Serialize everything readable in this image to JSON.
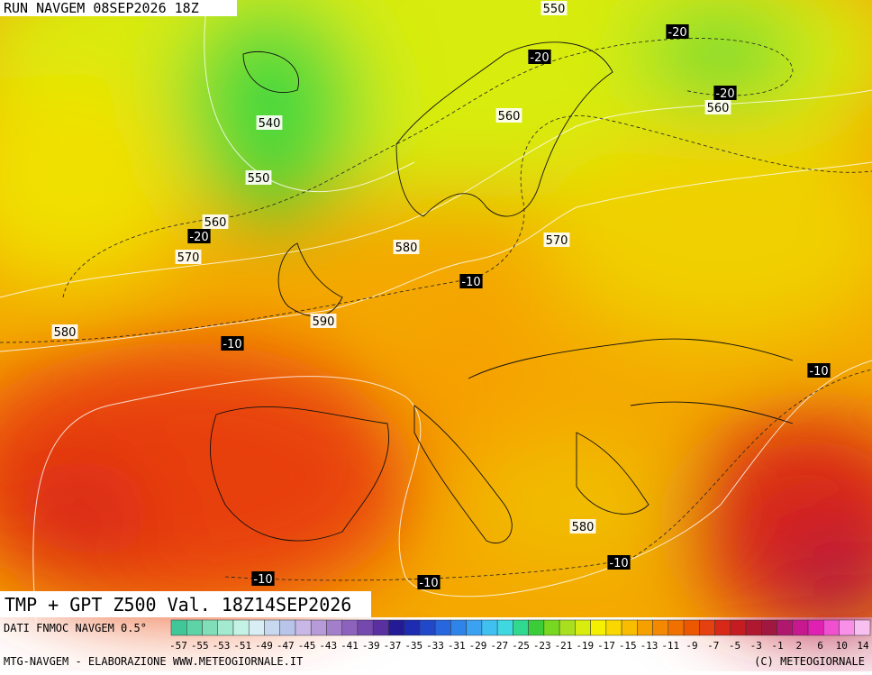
{
  "header": {
    "run": "RUN NAVGEM 08SEP2026 18Z"
  },
  "map": {
    "height_labels": [
      "550",
      "540",
      "550",
      "560",
      "560",
      "570",
      "580",
      "570",
      "590",
      "580",
      "560",
      "580"
    ],
    "temperature_labels": [
      "-20",
      "-20",
      "-20",
      "-20",
      "-10",
      "-10",
      "-10",
      "-10",
      "-10",
      "-10"
    ]
  },
  "title": "TMP + GPT Z500 Val. 18Z14SEP2026",
  "colorbar": {
    "source": "DATI FNMOC NAVGEM 0.5°",
    "labels": [
      "-57",
      "-55",
      "-53",
      "-51",
      "-49",
      "-47",
      "-45",
      "-43",
      "-41",
      "-39",
      "-37",
      "-35",
      "-33",
      "-31",
      "-29",
      "-27",
      "-25",
      "-23",
      "-21",
      "-19",
      "-17",
      "-15",
      "-13",
      "-11",
      "-9",
      "-7",
      "-5",
      "-3",
      "-1",
      "2",
      "6",
      "10",
      "14"
    ],
    "colors": [
      "#3fc79a",
      "#5fd3a8",
      "#80dfb8",
      "#a3ead0",
      "#c4f2e4",
      "#d8eef4",
      "#c8d8ee",
      "#b8c4ea",
      "#c9b7e6",
      "#b79ad8",
      "#a37fcb",
      "#8c62bd",
      "#7448ad",
      "#5a2fa0",
      "#241a96",
      "#1d2cb0",
      "#2048c8",
      "#2766dc",
      "#2f84ea",
      "#3aa2f0",
      "#40c0f0",
      "#3fd8e0",
      "#30d890",
      "#3ccc3a",
      "#78d820",
      "#a8e020",
      "#d8ec10",
      "#f4f000",
      "#f8d800",
      "#f8bc00",
      "#f6a000",
      "#f48800",
      "#f07000",
      "#ec5800",
      "#e44010",
      "#d82818",
      "#c41c20",
      "#b01830",
      "#a01840",
      "#b01870",
      "#c81890",
      "#e020b0",
      "#f050d0",
      "#f890e8",
      "#f8c0f0"
    ]
  },
  "footer": {
    "left": "MTG-NAVGEM - ELABORAZIONE WWW.METEOGIORNALE.IT",
    "right": "(C) METEOGIORNALE"
  }
}
